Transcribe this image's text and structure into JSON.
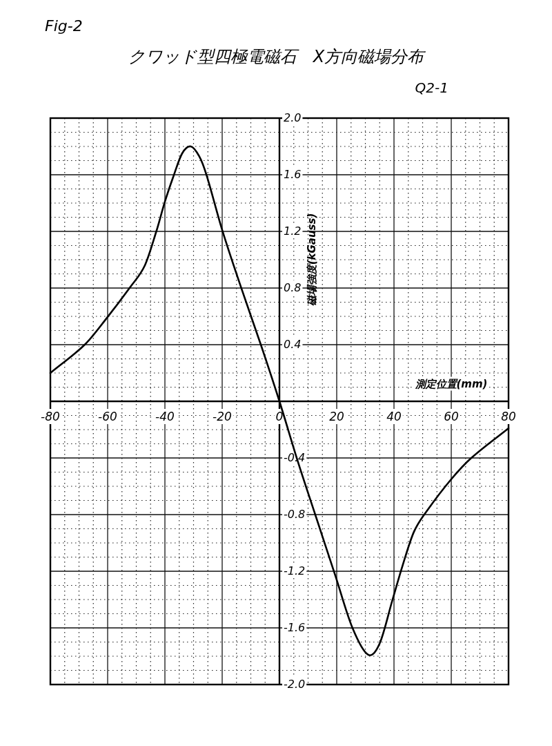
{
  "chart_data": {
    "type": "line",
    "title": "クワッド型四極電磁石　X方向磁場分布",
    "xlabel": "測定位置(mm)",
    "ylabel": "磁場強度(kGauss)",
    "annotations": [
      "Fig-2",
      "Q2-1"
    ],
    "xlim": [
      -80,
      80
    ],
    "xticks": [
      -80,
      -60,
      -40,
      -20,
      0,
      20,
      40,
      60,
      80
    ],
    "ylim": [
      -2,
      2
    ],
    "yticks": [
      {
        "value": -2,
        "label": "-2.0"
      },
      {
        "value": -1.6,
        "label": "-1.6"
      },
      {
        "value": -1.2,
        "label": "-1.2"
      },
      {
        "value": -0.8,
        "label": "-0.8"
      },
      {
        "value": -0.4,
        "label": "-0.4"
      },
      {
        "value": 0,
        "label": null
      },
      {
        "value": 0.4,
        "label": "0.4"
      },
      {
        "value": 0.8,
        "label": "0.8"
      },
      {
        "value": 1.2,
        "label": "1.2"
      },
      {
        "value": 1.6,
        "label": "1.6"
      },
      {
        "value": 2,
        "label": "2.0"
      }
    ],
    "grid": true,
    "series": [
      {
        "color": "#000000",
        "x": [
          -80,
          -68,
          -61,
          -52,
          -47,
          -43,
          -40,
          -37,
          -34,
          -31,
          -28,
          -25.5,
          -20,
          -13.5,
          -6.5,
          0,
          6.5,
          12.5,
          19.5,
          25.5,
          31,
          35,
          39.5,
          43,
          47,
          52,
          60,
          67,
          80
        ],
        "values": [
          0.2,
          0.4,
          0.57,
          0.81,
          0.96,
          1.2,
          1.41,
          1.59,
          1.75,
          1.8,
          1.73,
          1.6,
          1.21,
          0.81,
          0.4,
          0,
          -0.43,
          -0.8,
          -1.23,
          -1.6,
          -1.79,
          -1.71,
          -1.4,
          -1.16,
          -0.92,
          -0.76,
          -0.55,
          -0.4,
          -0.19
        ]
      }
    ]
  }
}
